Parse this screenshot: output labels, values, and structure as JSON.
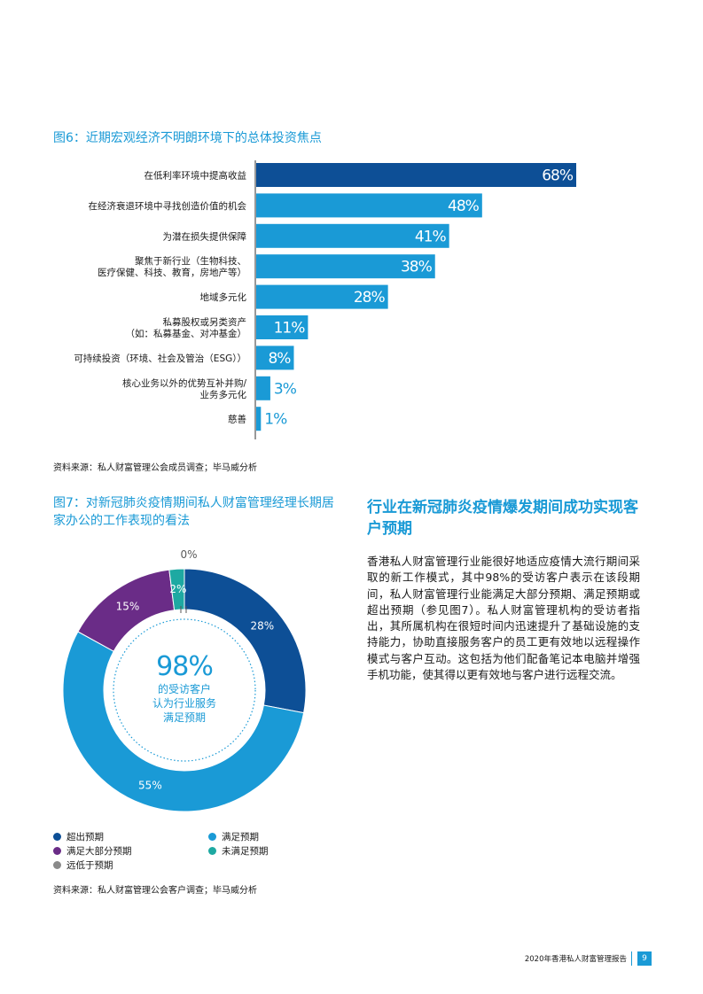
{
  "figure6": {
    "title": "图6：近期宏观经济不明朗环境下的总体投资焦点",
    "source": "资料来源：私人财富管理公会成员调查；毕马威分析"
  },
  "figure7": {
    "title": "图7：对新冠肺炎疫情期间私人财富管理经理长期居家办公的工作表现的看法",
    "center_value": "98%",
    "center_text": [
      "的受访客户",
      "认为行业服务",
      "满足预期"
    ],
    "source": "资料来源：私人财富管理公会客户调查；毕马威分析"
  },
  "section": {
    "heading": "行业在新冠肺炎疫情爆发期间成功实现客户预期",
    "body": "香港私人财富管理行业能很好地适应疫情大流行期间采取的新工作模式，其中98%的受访客户表示在该段期间，私人财富管理行业能满足大部分预期、满足预期或超出预期（参见图7）。私人财富管理机构的受访者指出，其所属机构在很短时间内迅速提升了基础设施的支持能力，协助直接服务客户的员工更有效地以远程操作模式与客户互动。这包括为他们配备笔记本电脑并增强手机功能，使其得以更有效地与客户进行远程交流。"
  },
  "footer": {
    "report_title": "2020年香港私人财富管理报告",
    "page_number": "9"
  },
  "colors": {
    "dark_blue": "#0d4f96",
    "light_blue": "#1a9ad6",
    "purple": "#6a2c87",
    "teal": "#1ea9a2",
    "grey": "#8a8a8a"
  },
  "chart_data": [
    {
      "type": "bar",
      "orientation": "horizontal",
      "categories": [
        [
          "在低利率环境中提高收益"
        ],
        [
          "在经济衰退环境中寻找创造价值的机会"
        ],
        [
          "为潜在损失提供保障"
        ],
        [
          "聚焦于新行业（生物科技、",
          "医疗保健、科技、教育，房地产等）"
        ],
        [
          "地域多元化"
        ],
        [
          "私募股权或另类资产",
          "（如：私募基金、对冲基金）"
        ],
        [
          "可持续投资（环境、社会及管治（ESG））"
        ],
        [
          "核心业务以外的优势互补并购/",
          "业务多元化"
        ],
        [
          "慈善"
        ]
      ],
      "values": [
        68,
        48,
        41,
        38,
        28,
        11,
        8,
        3,
        1
      ],
      "value_labels": [
        "68%",
        "48%",
        "41%",
        "38%",
        "28%",
        "11%",
        "8%",
        "3%",
        "1%"
      ],
      "highlight_index": 0,
      "grid": false
    },
    {
      "type": "pie",
      "style": "donut",
      "slices": [
        {
          "label": "超出预期",
          "value": 28,
          "display": "28%",
          "color": "#0d4f96"
        },
        {
          "label": "满足预期",
          "value": 55,
          "display": "55%",
          "color": "#1a9ad6"
        },
        {
          "label": "满足大部分预期",
          "value": 15,
          "display": "15%",
          "color": "#6a2c87"
        },
        {
          "label": "未满足预期",
          "value": 2,
          "display": "2%",
          "color": "#1ea9a2"
        },
        {
          "label": "远低于预期",
          "value": 0,
          "display": "0%",
          "color": "#8a8a8a"
        }
      ],
      "legend": [
        {
          "label": "超出预期",
          "color": "#0d4f96"
        },
        {
          "label": "满足预期",
          "color": "#1a9ad6"
        },
        {
          "label": "满足大部分预期",
          "color": "#6a2c87"
        },
        {
          "label": "未满足预期",
          "color": "#1ea9a2"
        },
        {
          "label": "远低于预期",
          "color": "#8a8a8a"
        }
      ]
    }
  ]
}
